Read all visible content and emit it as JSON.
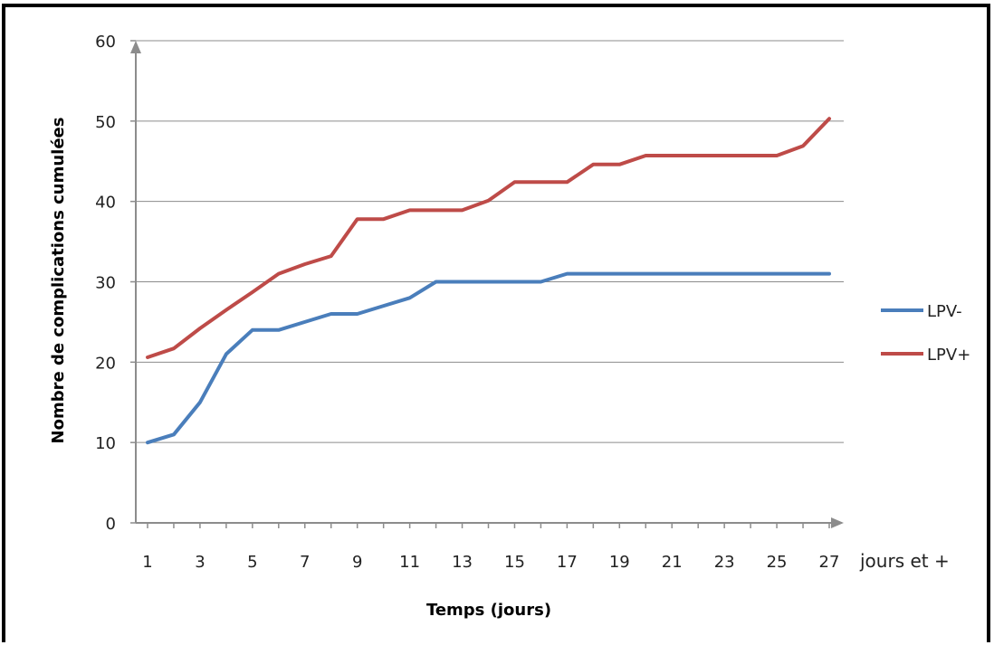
{
  "chart_data": {
    "type": "line",
    "title": "",
    "xlabel": "Temps (jours)",
    "ylabel": "Nombre de complications cumulées",
    "x_suffix_label": "jours et +",
    "x": [
      1,
      2,
      3,
      4,
      5,
      6,
      7,
      8,
      9,
      10,
      11,
      12,
      13,
      14,
      15,
      16,
      17,
      18,
      19,
      20,
      21,
      22,
      23,
      24,
      25,
      26,
      27
    ],
    "x_tick_labels": [
      "1",
      "3",
      "5",
      "7",
      "9",
      "11",
      "13",
      "15",
      "17",
      "19",
      "21",
      "23",
      "25",
      "27"
    ],
    "ylim": [
      0,
      60
    ],
    "y_ticks": [
      0,
      10,
      20,
      30,
      40,
      50,
      60
    ],
    "grid": true,
    "legend_position": "right",
    "series": [
      {
        "name": "LPV-",
        "color": "#4a7ebb",
        "values": [
          10,
          11,
          15,
          21,
          24,
          24,
          25,
          26,
          26,
          27,
          28,
          30,
          30,
          30,
          30,
          30,
          31,
          31,
          31,
          31,
          31,
          31,
          31,
          31,
          31,
          31,
          31
        ]
      },
      {
        "name": "LPV+",
        "color": "#be4b48",
        "values": [
          20.6,
          21.7,
          24.2,
          26.5,
          28.7,
          31,
          32.2,
          33.2,
          37.8,
          37.8,
          38.9,
          38.9,
          38.9,
          40.1,
          42.4,
          42.4,
          42.4,
          44.6,
          44.6,
          45.7,
          45.7,
          45.7,
          45.7,
          45.7,
          45.7,
          46.9,
          50.3
        ]
      }
    ]
  }
}
